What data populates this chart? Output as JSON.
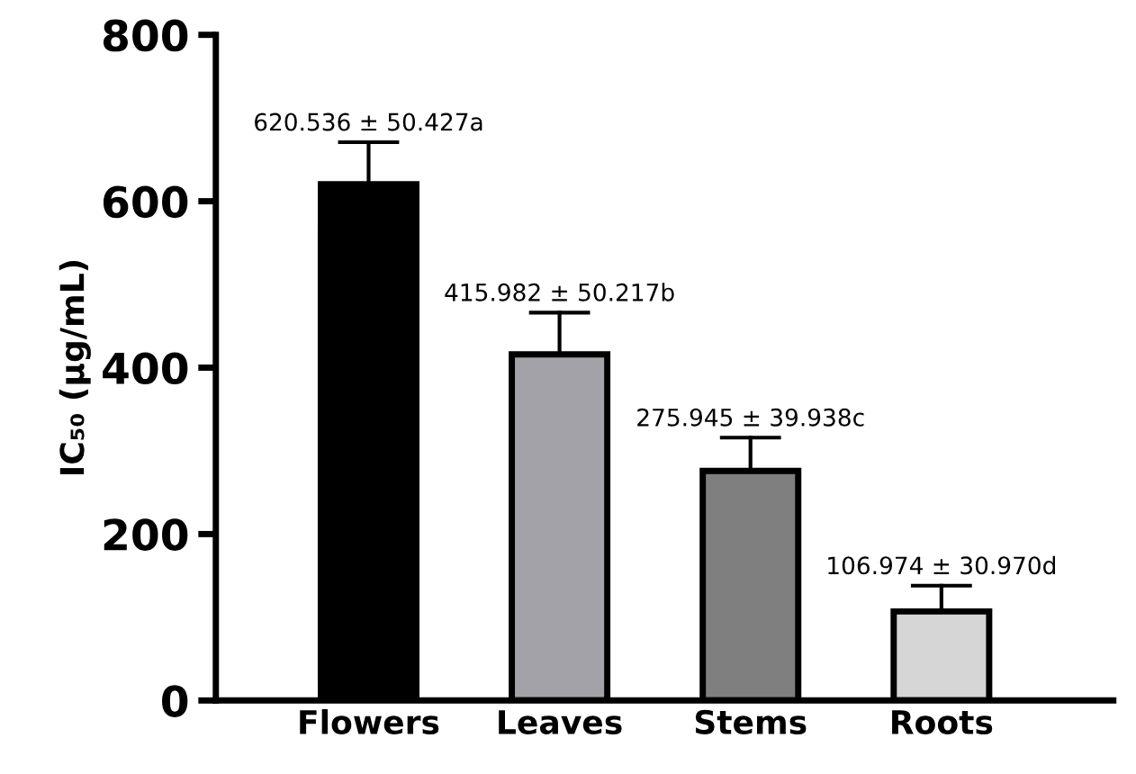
{
  "chart_data": {
    "type": "bar",
    "ylabel": "IC₅₀ (μg/mL)",
    "categories": [
      "Flowers",
      "Leaves",
      "Stems",
      "Roots"
    ],
    "values": [
      620.536,
      415.982,
      275.945,
      106.974
    ],
    "colors": [
      "#000000",
      "#a3a2a8",
      "#7f7f7f",
      "#d6d6d6"
    ],
    "errors": [
      [
        620.536,
        670.963
      ],
      [
        415.982,
        466.199
      ],
      [
        275.945,
        315.883
      ],
      [
        106.974,
        137.944
      ]
    ],
    "value_labels": [
      "620.536 ± 50.427a",
      "415.982 ± 50.217b",
      "275.945 ± 39.938c",
      "106.974 ± 30.970d"
    ],
    "ylim": [
      0,
      800
    ],
    "yticks": [
      0,
      200,
      400,
      600,
      800
    ],
    "grid": false,
    "legend": false
  }
}
